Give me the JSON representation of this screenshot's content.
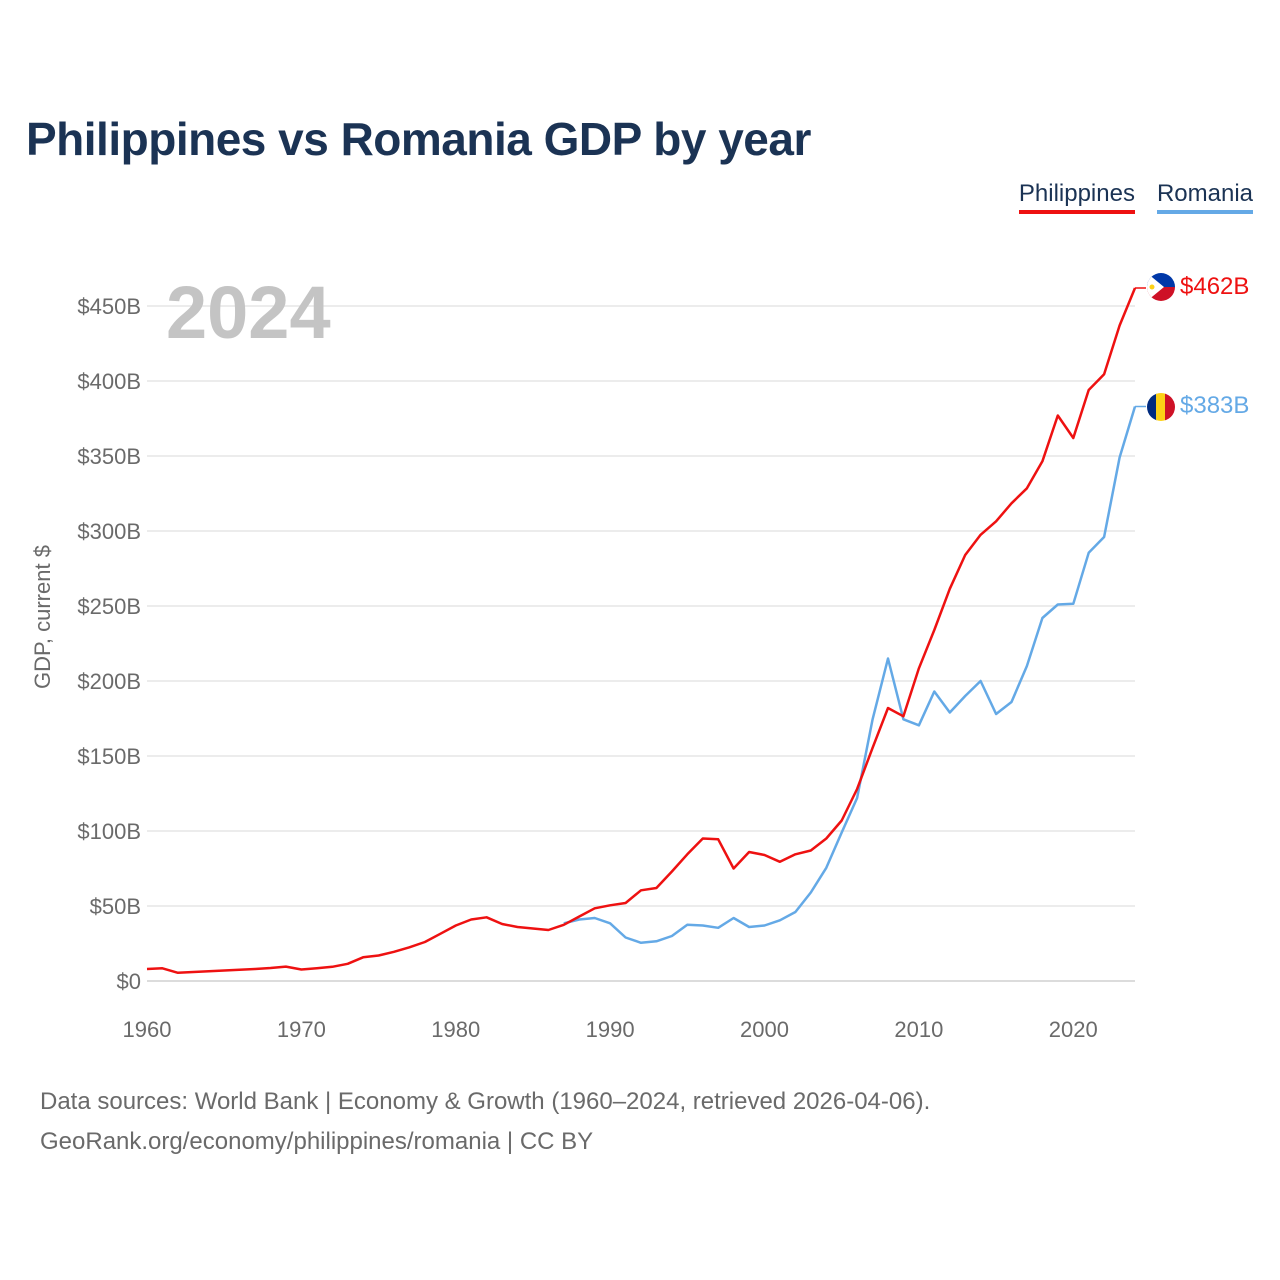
{
  "title": "Philippines vs Romania GDP by year",
  "legend": {
    "philippines": "Philippines",
    "romania": "Romania"
  },
  "year_label": "2024",
  "end_labels": {
    "philippines": "$462B",
    "romania": "$383B"
  },
  "flags": {
    "philippines": "philippines-flag-icon",
    "romania": "romania-flag-icon"
  },
  "colors": {
    "philippines": "#ee1111",
    "romania": "#64a9e6",
    "title": "#1b3354",
    "year": "#c4c4c4"
  },
  "footer": {
    "line1": "Data sources: World Bank | Economy & Growth (1960–2024, retrieved 2026-04-06).",
    "line2": "GeoRank.org/economy/philippines/romania | CC BY"
  },
  "chart_data": {
    "type": "line",
    "title": "Philippines vs Romania GDP by year",
    "xlabel": "",
    "ylabel": "GDP, current $",
    "xlim": [
      1960,
      2024
    ],
    "ylim": [
      0,
      500
    ],
    "y_unit": "billions USD",
    "xticks": [
      1960,
      1970,
      1980,
      1990,
      2000,
      2010,
      2020
    ],
    "xtick_labels": [
      "1960",
      "1970",
      "1980",
      "1990",
      "2000",
      "2010",
      "2020"
    ],
    "yticks": [
      0,
      50,
      100,
      150,
      200,
      250,
      300,
      350,
      400,
      450
    ],
    "ytick_labels": [
      "$0",
      "$50B",
      "$100B",
      "$150B",
      "$200B",
      "$250B",
      "$300B",
      "$350B",
      "$400B",
      "$450B"
    ],
    "grid": true,
    "legend_position": "top-right",
    "series": [
      {
        "name": "Philippines",
        "color": "#ee1111",
        "x": [
          1960,
          1961,
          1962,
          1963,
          1964,
          1965,
          1966,
          1967,
          1968,
          1969,
          1970,
          1971,
          1972,
          1973,
          1974,
          1975,
          1976,
          1977,
          1978,
          1979,
          1980,
          1981,
          1982,
          1983,
          1984,
          1985,
          1986,
          1987,
          1988,
          1989,
          1990,
          1991,
          1992,
          1993,
          1994,
          1995,
          1996,
          1997,
          1998,
          1999,
          2000,
          2001,
          2002,
          2003,
          2004,
          2005,
          2006,
          2007,
          2008,
          2009,
          2010,
          2011,
          2012,
          2013,
          2014,
          2015,
          2016,
          2017,
          2018,
          2019,
          2020,
          2021,
          2022,
          2023,
          2024
        ],
        "values": [
          8,
          8.5,
          5.5,
          6,
          6.5,
          7,
          7.5,
          8,
          8.7,
          9.6,
          7.7,
          8.5,
          9.5,
          11.5,
          15.8,
          17,
          19.5,
          22.5,
          26,
          31.5,
          37,
          41,
          42.5,
          38,
          36,
          35,
          34,
          37.5,
          43,
          48.5,
          50.5,
          52,
          60.5,
          62,
          73,
          84.5,
          95,
          94.5,
          75,
          86,
          84,
          79.5,
          84.5,
          87,
          95,
          107,
          128,
          155.5,
          182,
          176.5,
          208.5,
          234,
          261.5,
          284,
          297.5,
          306.5,
          318.5,
          328.5,
          346.5,
          377,
          362,
          394,
          404.5,
          437,
          462
        ]
      },
      {
        "name": "Romania",
        "color": "#64a9e6",
        "x": [
          1987,
          1988,
          1989,
          1990,
          1991,
          1992,
          1993,
          1994,
          1995,
          1996,
          1997,
          1998,
          1999,
          2000,
          2001,
          2002,
          2003,
          2004,
          2005,
          2006,
          2007,
          2008,
          2009,
          2010,
          2011,
          2012,
          2013,
          2014,
          2015,
          2016,
          2017,
          2018,
          2019,
          2020,
          2021,
          2022,
          2023,
          2024
        ],
        "values": [
          38.5,
          41,
          42,
          38.5,
          29,
          25.5,
          26.5,
          30,
          37.5,
          37,
          35.5,
          42,
          36,
          37,
          40.5,
          46,
          59,
          75.5,
          99,
          122,
          174.5,
          215,
          174.5,
          170.5,
          193,
          179,
          190,
          200,
          178,
          186,
          210,
          242,
          251,
          251.5,
          285.5,
          296,
          349,
          383
        ]
      }
    ],
    "end_labels": [
      "$462B",
      "$383B"
    ],
    "annotation": "2024"
  }
}
